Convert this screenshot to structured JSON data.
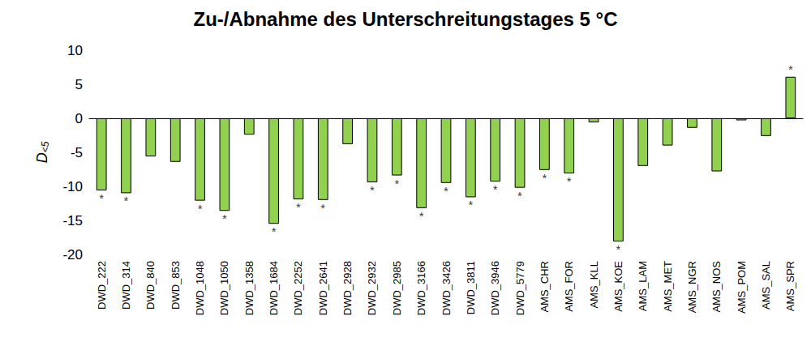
{
  "chart_data": {
    "type": "bar",
    "title": "Zu-/Abnahme des Unterschreitungstages 5 °C",
    "ylabel": "D<5",
    "categories": [
      "DWD_222",
      "DWD_314",
      "DWD_840",
      "DWD_853",
      "DWD_1048",
      "DWD_1050",
      "DWD_1358",
      "DWD_1684",
      "DWD_2252",
      "DWD_2641",
      "DWD_2928",
      "DWD_2932",
      "DWD_2985",
      "DWD_3166",
      "DWD_3426",
      "DWD_3811",
      "DWD_3946",
      "DWD_5779",
      "AMS_CHR",
      "AMS_FOR",
      "AMS_KLL",
      "AMS_KOE",
      "AMS_LAM",
      "AMS_MET",
      "AMS_NGR",
      "AMS_NOS",
      "AMS_POM",
      "AMS_SAL",
      "AMS_SPR"
    ],
    "values": [
      -10.6,
      -11.0,
      -5.6,
      -6.4,
      -12.1,
      -13.6,
      -2.4,
      -15.5,
      -11.9,
      -12.0,
      -3.8,
      -9.4,
      -8.4,
      -13.2,
      -9.5,
      -11.6,
      -9.3,
      -10.2,
      -7.6,
      -8.1,
      -0.6,
      -18.1,
      -7.0,
      -4.0,
      -1.4,
      -7.8,
      -0.3,
      -2.6,
      6.1
    ],
    "annotations": [
      "*",
      "*",
      null,
      null,
      "*",
      "*",
      null,
      "*",
      "*",
      "*",
      null,
      "*",
      "*",
      "*",
      "*",
      "*",
      "*",
      "*",
      "*",
      "*",
      null,
      "*",
      null,
      null,
      null,
      null,
      null,
      null,
      "*"
    ],
    "color": "#92d050",
    "ylim": [
      -20,
      10
    ],
    "yticks": [
      -20,
      -15,
      -10,
      -5,
      0,
      5,
      10
    ],
    "grid": false
  }
}
